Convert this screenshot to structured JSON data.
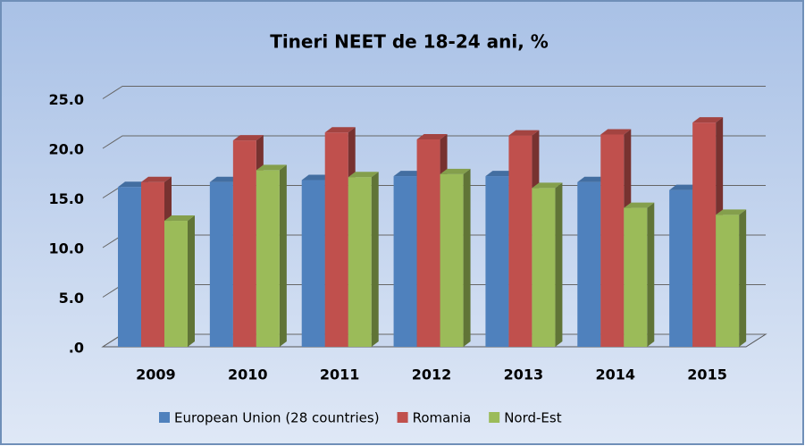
{
  "chart_data": {
    "type": "bar3d",
    "title": "Tineri NEET de 18-24 ani, %",
    "categories": [
      "2009",
      "2010",
      "2011",
      "2012",
      "2013",
      "2014",
      "2015"
    ],
    "series": [
      {
        "name": "European Union (28 countries)",
        "color": "#4f81bd",
        "values": [
          16.1,
          16.6,
          16.8,
          17.2,
          17.2,
          16.6,
          15.8
        ]
      },
      {
        "name": "Romania",
        "color": "#c0504d",
        "values": [
          16.6,
          20.8,
          21.6,
          20.9,
          21.3,
          21.4,
          22.6
        ]
      },
      {
        "name": "Nord-Est",
        "color": "#9bbb59",
        "values": [
          12.7,
          17.8,
          17.1,
          17.4,
          16.0,
          14.0,
          13.3
        ]
      }
    ],
    "ylim": [
      0,
      25
    ],
    "yticks": [
      {
        "value": 0,
        "label": ".0"
      },
      {
        "value": 5,
        "label": "5.0"
      },
      {
        "value": 10,
        "label": "10.0"
      },
      {
        "value": 15,
        "label": "15.0"
      },
      {
        "value": 20,
        "label": "20.0"
      },
      {
        "value": 25,
        "label": "25.0"
      }
    ],
    "grid": true,
    "legend": "bottom"
  }
}
